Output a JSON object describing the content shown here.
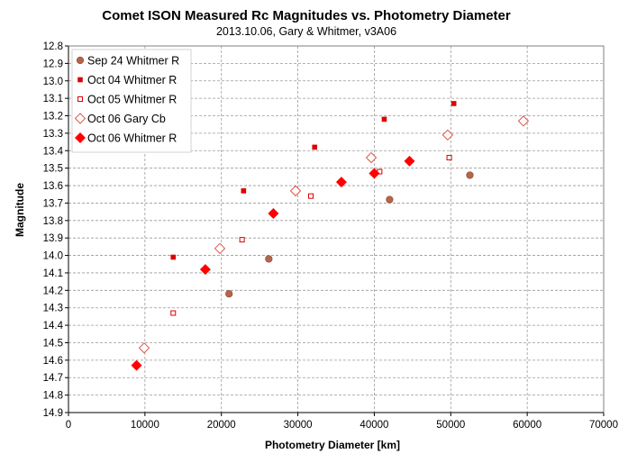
{
  "chart_data": {
    "type": "scatter",
    "title": "Comet ISON Measured Rc Magnitudes vs. Photometry Diameter",
    "subtitle": "2013.10.06,  Gary & Whitmer, v3A06",
    "xlabel": "Photometry Diameter  [km]",
    "ylabel": "Magnitude",
    "xlim": [
      0,
      70000
    ],
    "ylim": [
      12.8,
      14.9
    ],
    "y_inverted": true,
    "x_ticks": [
      "0",
      "10000",
      "20000",
      "30000",
      "40000",
      "50000",
      "60000",
      "70000"
    ],
    "y_ticks": [
      "12.8",
      "12.9",
      "13.0",
      "13.1",
      "13.2",
      "13.3",
      "13.4",
      "13.5",
      "13.6",
      "13.7",
      "13.8",
      "13.9",
      "14.0",
      "14.1",
      "14.2",
      "14.3",
      "14.4",
      "14.5",
      "14.6",
      "14.7",
      "14.8",
      "14.9"
    ],
    "grid": true,
    "legend_position": "top-left",
    "series": [
      {
        "name": "Sep 24 Whitmer R",
        "marker": "circle",
        "color": "#b5654a",
        "points": [
          [
            21000,
            14.22
          ],
          [
            26200,
            14.02
          ],
          [
            42000,
            13.68
          ],
          [
            52500,
            13.54
          ]
        ]
      },
      {
        "name": "Oct 04 Whitmer R",
        "marker": "square-filled",
        "color": "#dd0000",
        "points": [
          [
            13700,
            14.01
          ],
          [
            22900,
            13.63
          ],
          [
            32200,
            13.38
          ],
          [
            41300,
            13.22
          ],
          [
            50400,
            13.13
          ]
        ]
      },
      {
        "name": "Oct 05 Whitmer R",
        "marker": "square-open",
        "color": "#dd0000",
        "points": [
          [
            13700,
            14.33
          ],
          [
            22700,
            13.91
          ],
          [
            31700,
            13.66
          ],
          [
            40700,
            13.52
          ],
          [
            49800,
            13.44
          ]
        ]
      },
      {
        "name": "Oct 06 Gary Cb",
        "marker": "diamond-open",
        "color": "#e0554a",
        "points": [
          [
            9900,
            14.53
          ],
          [
            19800,
            13.96
          ],
          [
            29700,
            13.63
          ],
          [
            39600,
            13.44
          ],
          [
            49600,
            13.31
          ],
          [
            59500,
            13.23
          ]
        ]
      },
      {
        "name": "Oct 06 Whitmer R",
        "marker": "diamond-filled",
        "color": "#ff0000",
        "points": [
          [
            8900,
            14.63
          ],
          [
            17900,
            14.08
          ],
          [
            26800,
            13.76
          ],
          [
            35700,
            13.58
          ],
          [
            40000,
            13.53
          ],
          [
            44600,
            13.46
          ]
        ]
      }
    ]
  }
}
